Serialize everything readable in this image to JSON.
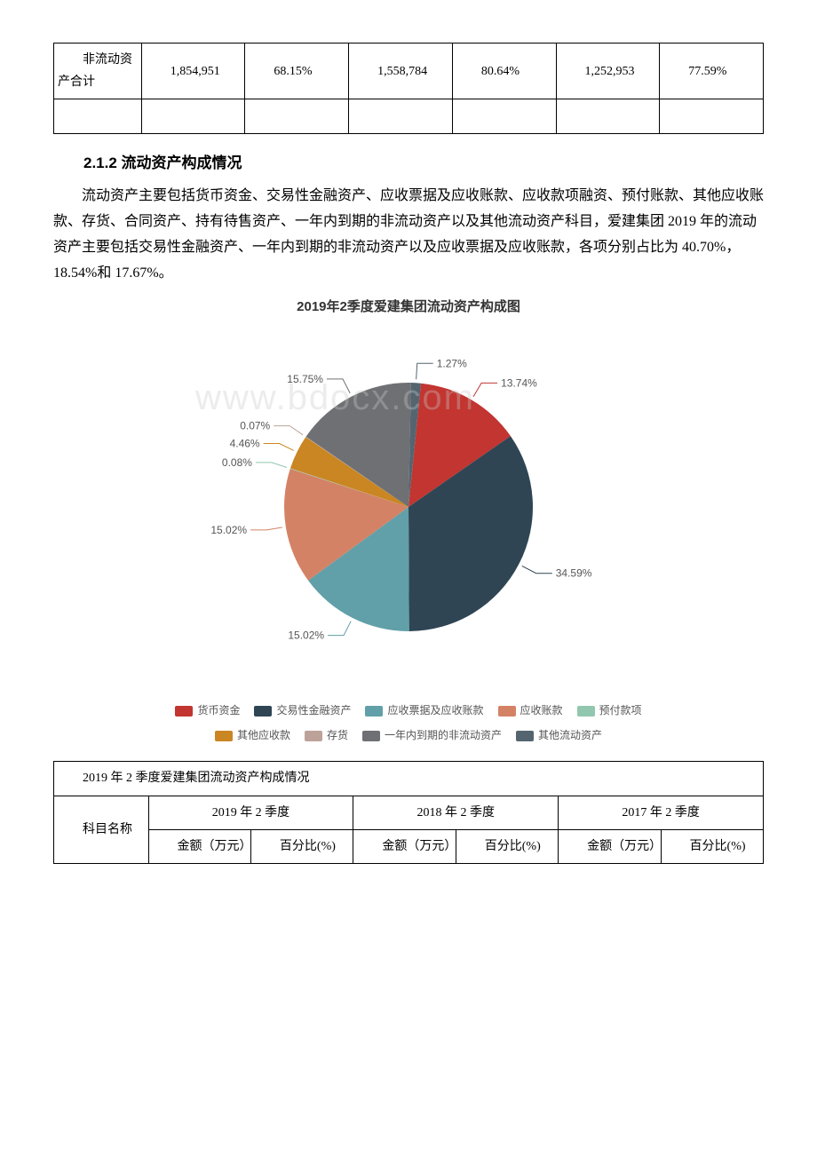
{
  "top_table": {
    "row": {
      "c1": "　　非流动资产合计",
      "c2": "　　1,854,951",
      "c3": "　　68.15%",
      "c4": "　　1,558,784",
      "c5": "　　80.64%",
      "c6": "　　1,252,953",
      "c7": "　　77.59%"
    }
  },
  "section": {
    "heading": "2.1.2 流动资产构成情况",
    "paragraph": "流动资产主要包括货币资金、交易性金融资产、应收票据及应收账款、应收款项融资、预付账款、其他应收账款、存货、合同资产、持有待售资产、一年内到期的非流动资产以及其他流动资产科目，爱建集团 2019 年的流动资产主要包括交易性金融资产、一年内到期的非流动资产以及应收票据及应收账款，各项分别占比为 40.70%，18.54%和 17.67%。"
  },
  "chart": {
    "title": "2019年2季度爱建集团流动资产构成图",
    "type": "pie",
    "background_color": "#ffffff",
    "label_fontsize": 12,
    "label_color": "#555555",
    "title_fontsize": 15,
    "title_color": "#333333",
    "slices": [
      {
        "name": "货币资金",
        "value": 13.74,
        "color": "#c23531",
        "label": "13.74%"
      },
      {
        "name": "交易性金融资产",
        "value": 34.59,
        "color": "#2f4554",
        "label": "34.59%"
      },
      {
        "name": "应收票据及应收账款",
        "value": 15.02,
        "color": "#61a0a8",
        "label": "15.02%"
      },
      {
        "name": "应收账款",
        "value": 15.02,
        "color": "#d48265",
        "label": "15.02%"
      },
      {
        "name": "预付款项",
        "value": 0.08,
        "color": "#91c7ae",
        "label": "0.08%"
      },
      {
        "name": "其他应收款",
        "value": 4.46,
        "color": "#ca8622",
        "label": "4.46%"
      },
      {
        "name": "存货",
        "value": 0.07,
        "color": "#bda29a",
        "label": "0.07%"
      },
      {
        "name": "一年内到期的非流动资产",
        "value": 15.75,
        "color": "#6e7074",
        "label": "15.75%"
      },
      {
        "name": "其他流动资产",
        "value": 1.27,
        "color": "#546570",
        "label": "1.27%"
      }
    ],
    "legend": [
      {
        "name": "货币资金",
        "color": "#c23531"
      },
      {
        "name": "交易性金融资产",
        "color": "#2f4554"
      },
      {
        "name": "应收票据及应收账款",
        "color": "#61a0a8"
      },
      {
        "name": "应收账款",
        "color": "#d48265"
      },
      {
        "name": "预付款项",
        "color": "#91c7ae"
      },
      {
        "name": "其他应收款",
        "color": "#ca8622"
      },
      {
        "name": "存货",
        "color": "#bda29a"
      },
      {
        "name": "一年内到期的非流动资产",
        "color": "#6e7074"
      },
      {
        "name": "其他流动资产",
        "color": "#546570"
      }
    ]
  },
  "watermark": "www.bdocx.com",
  "bottom_table": {
    "caption": "　　2019 年 2 季度爱建集团流动资产构成情况",
    "row_label": "　　科目名称",
    "periods": {
      "p1": "2019 年 2 季度",
      "p2": "2018 年 2 季度",
      "p3": "2017 年 2 季度"
    },
    "subheaders": {
      "amt": "　　金额（万元）",
      "pct": "　　百分比(%)"
    }
  }
}
